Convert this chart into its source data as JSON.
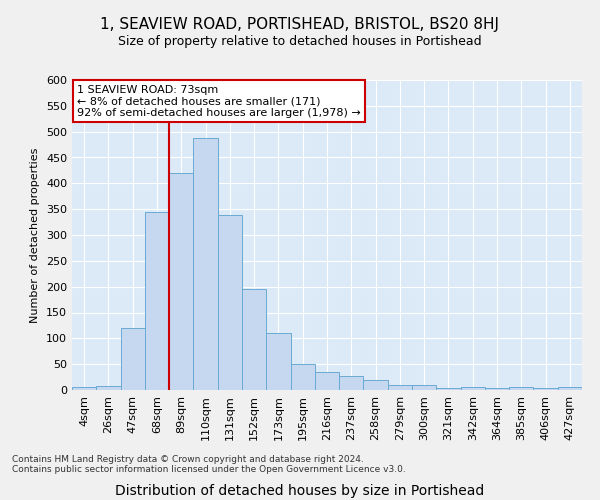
{
  "title": "1, SEAVIEW ROAD, PORTISHEAD, BRISTOL, BS20 8HJ",
  "subtitle": "Size of property relative to detached houses in Portishead",
  "xlabel": "Distribution of detached houses by size in Portishead",
  "ylabel": "Number of detached properties",
  "bar_labels": [
    "4sqm",
    "26sqm",
    "47sqm",
    "68sqm",
    "89sqm",
    "110sqm",
    "131sqm",
    "152sqm",
    "173sqm",
    "195sqm",
    "216sqm",
    "237sqm",
    "258sqm",
    "279sqm",
    "300sqm",
    "321sqm",
    "342sqm",
    "364sqm",
    "385sqm",
    "406sqm",
    "427sqm"
  ],
  "bar_values": [
    5,
    7,
    120,
    345,
    420,
    487,
    338,
    195,
    110,
    50,
    35,
    27,
    20,
    10,
    10,
    3,
    5,
    4,
    5,
    3,
    5
  ],
  "bar_color": "#c5d8f0",
  "bar_edge_color": "#6aaad4",
  "vline_x": 3.5,
  "vline_color": "#cc0000",
  "annotation_text": "1 SEAVIEW ROAD: 73sqm\n← 8% of detached houses are smaller (171)\n92% of semi-detached houses are larger (1,978) →",
  "annotation_box_facecolor": "#ffffff",
  "annotation_box_edgecolor": "#cc0000",
  "ylim": [
    0,
    600
  ],
  "yticks": [
    0,
    50,
    100,
    150,
    200,
    250,
    300,
    350,
    400,
    450,
    500,
    550,
    600
  ],
  "plot_bg_color": "#dce9f7",
  "fig_bg_color": "#f0f0f0",
  "grid_color": "#ffffff",
  "footer_line1": "Contains HM Land Registry data © Crown copyright and database right 2024.",
  "footer_line2": "Contains public sector information licensed under the Open Government Licence v3.0.",
  "title_fontsize": 11,
  "subtitle_fontsize": 9,
  "ylabel_fontsize": 8,
  "xlabel_fontsize": 10,
  "tick_fontsize": 8,
  "footer_fontsize": 6.5
}
